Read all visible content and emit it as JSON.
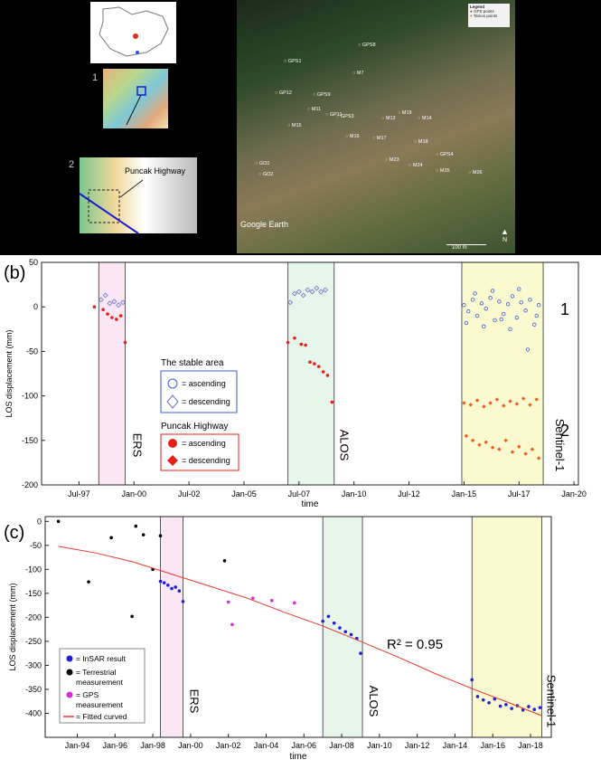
{
  "top": {
    "marker_1": "1",
    "marker_2": "2",
    "highway_label": "Puncak Highway",
    "legend_title": "Legend",
    "legend_gps": "GPS points",
    "legend_tamo": "Tamos points",
    "google_earth": "Google Earth",
    "scale_label": "100 m",
    "north_label": "N",
    "sat_labels": [
      "GPS8",
      "GPS1",
      "GP12",
      "GPS9",
      "M7",
      "M11",
      "GPS3",
      "M15",
      "M16",
      "M13",
      "M14",
      "M17",
      "M18",
      "GP11",
      "M19",
      "M23",
      "M24",
      "M25",
      "GPS4",
      "GO1",
      "GO2",
      "M26"
    ]
  },
  "chart_data": [
    {
      "type": "scatter",
      "panel_label": "(b)",
      "xlabel": "time",
      "ylabel": "LOS displacement (mm)",
      "ylim": [
        -200,
        50
      ],
      "yticks": [
        50,
        0,
        -50,
        -100,
        -150,
        -200
      ],
      "xticks": [
        "Jul-97",
        "Jan-00",
        "Jul-02",
        "Jan-05",
        "Jul-07",
        "Jan-10",
        "Jul-12",
        "Jan-15",
        "Jul-17",
        "Jan-20"
      ],
      "periods": [
        {
          "label": "ERS",
          "start": 1998.4,
          "end": 1999.6,
          "color": "#fbe6f5"
        },
        {
          "label": "ALOS",
          "start": 2007.0,
          "end": 2009.1,
          "color": "#e7f6ea"
        },
        {
          "label": "Sentinel-1",
          "start": 2014.9,
          "end": 2018.6,
          "color": "#fbf9cf"
        }
      ],
      "group_labels": [
        "1",
        "2"
      ],
      "legend": {
        "stable_title": "The stable area",
        "stable_asc": "= ascending",
        "stable_desc": "= descending",
        "puncak_title": "Puncak Highway",
        "puncak_asc": "= ascending",
        "puncak_desc": "= descending"
      },
      "series": [
        {
          "name": "The stable area ascending",
          "color": "#3a5bd8",
          "marker": "open-circle",
          "x": [
            2015.0,
            2015.2,
            2015.4,
            2015.6,
            2015.8,
            2016.0,
            2016.2,
            2016.4,
            2016.6,
            2016.8,
            2017.0,
            2017.2,
            2017.4,
            2017.6,
            2017.8,
            2018.0,
            2018.2,
            2018.4,
            2015.1,
            2015.5,
            2015.9,
            2016.3,
            2016.7,
            2017.1,
            2017.5,
            2017.9,
            2018.3
          ],
          "y": [
            2,
            -5,
            8,
            -10,
            4,
            -2,
            10,
            -15,
            6,
            -8,
            3,
            12,
            -12,
            5,
            -4,
            8,
            -20,
            2,
            -18,
            15,
            -22,
            18,
            -14,
            -25,
            20,
            -48,
            -10
          ]
        },
        {
          "name": "The stable area descending",
          "color": "#6a72c8",
          "marker": "open-diamond",
          "x": [
            1998.5,
            1998.7,
            1998.9,
            1999.1,
            1999.3,
            1999.5,
            2007.1,
            2007.3,
            2007.5,
            2007.7,
            2007.9,
            2008.1,
            2008.3,
            2008.5,
            2008.7
          ],
          "y": [
            8,
            13,
            4,
            6,
            2,
            5,
            5,
            15,
            17,
            13,
            19,
            17,
            21,
            17,
            19
          ]
        },
        {
          "name": "Puncak Highway ascending",
          "color": "#e6211a",
          "marker": "filled-circle",
          "x": [
            1998.2,
            1998.6,
            1998.8,
            1999.0,
            1999.2,
            1999.4,
            1999.6,
            2007.0,
            2007.3,
            2007.6,
            2007.8,
            2008.0,
            2008.2,
            2008.4,
            2008.6,
            2008.8,
            2009.0
          ],
          "y": [
            0,
            -3,
            -8,
            -12,
            -14,
            -10,
            -40,
            -40,
            -35,
            -42,
            -43,
            -62,
            -64,
            -67,
            -73,
            -77,
            -107
          ]
        },
        {
          "name": "Puncak Highway descending",
          "color": "#ef5a1e",
          "marker": "filled-diamond",
          "x": [
            2015.0,
            2015.3,
            2015.6,
            2015.9,
            2016.2,
            2016.5,
            2016.8,
            2017.1,
            2017.4,
            2017.7,
            2018.0,
            2018.3,
            2015.1,
            2015.4,
            2015.7,
            2016.0,
            2016.3,
            2016.6,
            2016.9,
            2017.2,
            2017.5,
            2017.8,
            2018.1,
            2018.4
          ],
          "y": [
            -108,
            -110,
            -105,
            -112,
            -108,
            -104,
            -111,
            -106,
            -109,
            -103,
            -110,
            -104,
            -145,
            -150,
            -155,
            -152,
            -158,
            -160,
            -150,
            -163,
            -157,
            -165,
            -160,
            -170
          ]
        }
      ]
    },
    {
      "type": "scatter",
      "panel_label": "(c)",
      "xlabel": "time",
      "ylabel": "LOS displacement (mm)",
      "ylim": [
        -450,
        10
      ],
      "yticks": [
        0,
        -50,
        -100,
        -150,
        -200,
        -250,
        -300,
        -350,
        -400
      ],
      "xticks": [
        "Jan-94",
        "Jan-96",
        "Jan-98",
        "Jan-00",
        "Jan-02",
        "Jan-04",
        "Jan-06",
        "Jan-08",
        "Jan-10",
        "Jan-12",
        "Jan-14",
        "Jan-16",
        "Jan-18"
      ],
      "annotation": "R² = 0.95",
      "periods": [
        {
          "label": "ERS",
          "start": 1998.4,
          "end": 1999.6,
          "color": "#fbe6f5"
        },
        {
          "label": "ALOS",
          "start": 2007.0,
          "end": 2009.1,
          "color": "#e7f6ea"
        },
        {
          "label": "Sentinel-1",
          "start": 2014.9,
          "end": 2018.6,
          "color": "#fbf9cf"
        }
      ],
      "legend": {
        "insar": "= InSAR result",
        "terrestrial_1": "= Terrestrial",
        "terrestrial_2": "measurement",
        "gps_1": "= GPS",
        "gps_2": "measurement",
        "fitted": "= Fitted curved"
      },
      "series": [
        {
          "name": "InSAR result",
          "color": "#1f1fd9",
          "x": [
            1998.4,
            1998.6,
            1998.8,
            1999.0,
            1999.2,
            1999.4,
            1999.6,
            2007.0,
            2007.3,
            2007.6,
            2007.9,
            2008.2,
            2008.5,
            2008.8,
            2009.0,
            2014.9,
            2015.2,
            2015.5,
            2015.8,
            2016.1,
            2016.4,
            2016.7,
            2017.0,
            2017.3,
            2017.6,
            2017.9,
            2018.2,
            2018.5
          ],
          "y": [
            -125,
            -128,
            -133,
            -140,
            -137,
            -145,
            -167,
            -208,
            -198,
            -212,
            -222,
            -230,
            -236,
            -244,
            -275,
            -330,
            -365,
            -372,
            -378,
            -370,
            -385,
            -382,
            -390,
            -384,
            -393,
            -386,
            -392,
            -388
          ]
        },
        {
          "name": "Terrestrial measurement",
          "color": "#000000",
          "x": [
            1993.0,
            1994.6,
            1995.8,
            1996.9,
            1997.1,
            1997.5,
            1998.0,
            1998.4,
            2001.8
          ],
          "y": [
            0,
            -126,
            -34,
            -198,
            -10,
            -28,
            -100,
            -30,
            -82
          ]
        },
        {
          "name": "GPS measurement",
          "color": "#d82ad8",
          "x": [
            2002.0,
            2002.2,
            2003.3,
            2004.3,
            2005.5
          ],
          "y": [
            -168,
            -215,
            -160,
            -165,
            -170
          ]
        },
        {
          "name": "Fitted curved",
          "color": "#e8372c",
          "line": true,
          "x": [
            1993.0,
            1995.0,
            1997.0,
            1999.0,
            2001.0,
            2003.0,
            2005.0,
            2007.0,
            2009.0,
            2011.0,
            2013.0,
            2015.0,
            2017.0,
            2018.6
          ],
          "y": [
            -52,
            -66,
            -85,
            -110,
            -135,
            -160,
            -190,
            -218,
            -250,
            -283,
            -318,
            -350,
            -380,
            -405
          ]
        }
      ]
    }
  ]
}
